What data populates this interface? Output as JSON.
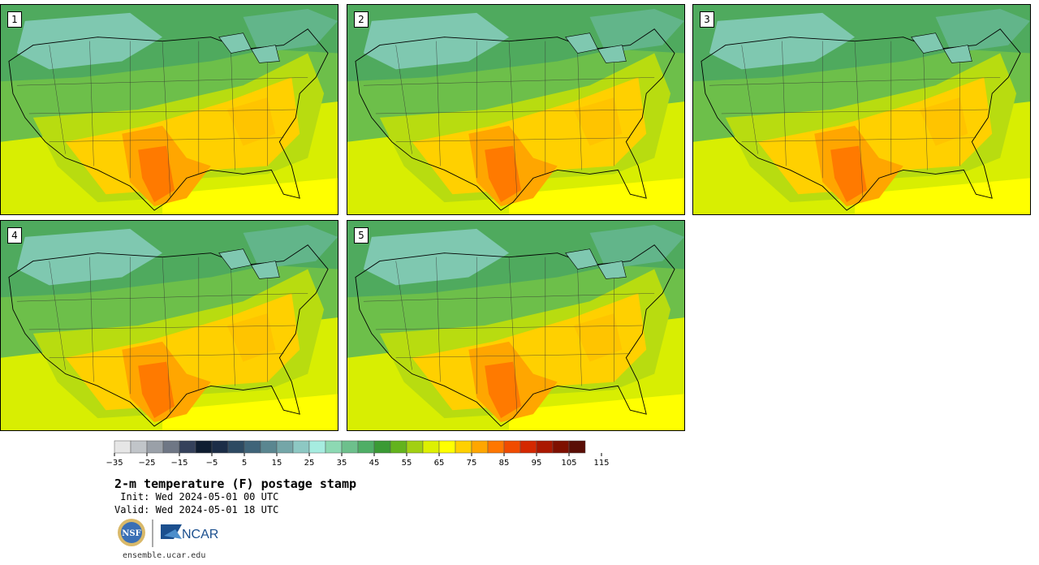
{
  "panels": [
    {
      "label": "1"
    },
    {
      "label": "2"
    },
    {
      "label": "3"
    },
    {
      "label": "4"
    },
    {
      "label": "5"
    }
  ],
  "colorbar": {
    "tick_labels": [
      "−35",
      "−25",
      "−15",
      "−5",
      "5",
      "15",
      "25",
      "35",
      "45",
      "55",
      "65",
      "75",
      "85",
      "95",
      "105",
      "115"
    ],
    "colors": [
      "#e6e6e6",
      "#c1c5c9",
      "#9aa0a8",
      "#6f7785",
      "#35415b",
      "#0f1d31",
      "#1c2d47",
      "#2d4a62",
      "#3f6479",
      "#5a8690",
      "#74a6a8",
      "#8dc8c3",
      "#a6ece0",
      "#8dd9b3",
      "#6dc08c",
      "#4fae66",
      "#3a9a34",
      "#63b31d",
      "#a2d012",
      "#ddf002",
      "#ffff00",
      "#ffd000",
      "#ffa600",
      "#ff7700",
      "#f04c00",
      "#d42800",
      "#aa1800",
      "#7e1000",
      "#5a0e06"
    ]
  },
  "title": "2-m temperature (F) postage stamp",
  "init_text": " Init: Wed 2024-05-01 00 UTC",
  "valid_text": "Valid: Wed 2024-05-01 18 UTC",
  "footer": "ensemble.ucar.edu",
  "logos": {
    "nsf": "NSF",
    "ncar": "NCAR"
  }
}
